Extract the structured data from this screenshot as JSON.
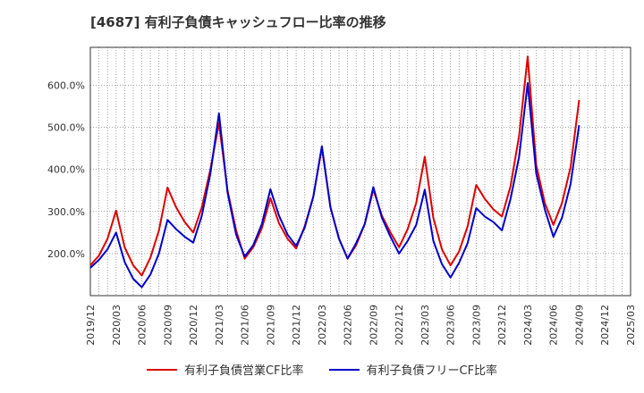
{
  "chart_data": {
    "type": "line",
    "title": "[4687]  有利子負債キャッシュフロー比率の推移",
    "ylim": [
      100,
      690
    ],
    "yticks": [
      200,
      300,
      400,
      500,
      600
    ],
    "ytick_labels": [
      "200.0%",
      "300.0%",
      "400.0%",
      "500.0%",
      "600.0%"
    ],
    "x_tick_labels": [
      "2019/12",
      "2020/03",
      "2020/06",
      "2020/09",
      "2020/12",
      "2021/03",
      "2021/06",
      "2021/09",
      "2021/12",
      "2022/03",
      "2022/06",
      "2022/09",
      "2022/12",
      "2023/03",
      "2023/06",
      "2023/09",
      "2023/12",
      "2024/03",
      "2024/06",
      "2024/09",
      "2024/12",
      "2025/03"
    ],
    "x_months": [
      "2019/12",
      "2020/01",
      "2020/02",
      "2020/03",
      "2020/04",
      "2020/05",
      "2020/06",
      "2020/07",
      "2020/08",
      "2020/09",
      "2020/10",
      "2020/11",
      "2020/12",
      "2021/01",
      "2021/02",
      "2021/03",
      "2021/04",
      "2021/05",
      "2021/06",
      "2021/07",
      "2021/08",
      "2021/09",
      "2021/10",
      "2021/11",
      "2021/12",
      "2022/01",
      "2022/02",
      "2022/03",
      "2022/04",
      "2022/05",
      "2022/06",
      "2022/07",
      "2022/08",
      "2022/09",
      "2022/10",
      "2022/11",
      "2022/12",
      "2023/01",
      "2023/02",
      "2023/03",
      "2023/04",
      "2023/05",
      "2023/06",
      "2023/07",
      "2023/08",
      "2023/09",
      "2023/10",
      "2023/11",
      "2023/12",
      "2024/01",
      "2024/02",
      "2024/03",
      "2024/04",
      "2024/05",
      "2024/06",
      "2024/07",
      "2024/08",
      "2024/09"
    ],
    "grid": true,
    "legend_position": "bottom",
    "series": [
      {
        "name": "有利子負債営業CF比率",
        "color": "#dd0000",
        "values": [
          172,
          195,
          235,
          302,
          215,
          172,
          148,
          190,
          255,
          357,
          310,
          275,
          250,
          310,
          400,
          510,
          350,
          255,
          188,
          215,
          260,
          332,
          272,
          235,
          212,
          265,
          335,
          452,
          310,
          235,
          188,
          220,
          270,
          352,
          290,
          250,
          215,
          258,
          320,
          430,
          285,
          210,
          172,
          205,
          265,
          363,
          330,
          305,
          288,
          360,
          480,
          668,
          410,
          320,
          268,
          320,
          405,
          565
        ]
      },
      {
        "name": "有利子負債フリーCF比率",
        "color": "#0000cc",
        "values": [
          166,
          185,
          210,
          250,
          180,
          140,
          120,
          150,
          200,
          280,
          258,
          240,
          226,
          290,
          390,
          533,
          345,
          245,
          193,
          220,
          270,
          353,
          290,
          245,
          218,
          262,
          335,
          455,
          310,
          235,
          188,
          225,
          270,
          358,
          285,
          240,
          200,
          230,
          268,
          352,
          230,
          175,
          143,
          178,
          225,
          308,
          288,
          275,
          255,
          330,
          430,
          605,
          390,
          305,
          240,
          285,
          365,
          505
        ]
      }
    ]
  }
}
